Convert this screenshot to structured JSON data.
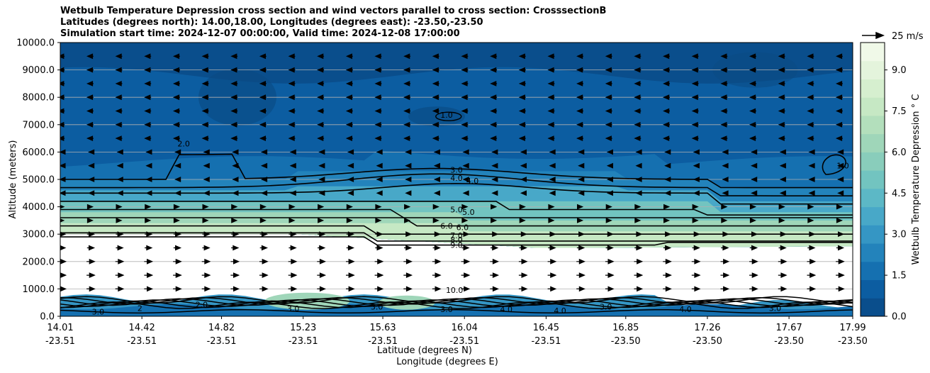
{
  "chart_data": {
    "type": "heatmap",
    "title_lines": [
      "Wetbulb Temperature Depression cross section and wind vectors parallel to cross section: CrosssectionB",
      "Latitudes (degrees north): 14.00,18.00, Longitudes (degrees east): -23.50,-23.50",
      "Simulation start time: 2024-12-07 00:00:00, Valid time: 2024-12-08 17:00:00"
    ],
    "ylabel": "Altitude (meters)",
    "xlabel_lines": [
      "Latitude (degrees N)",
      "Longitude (degrees E)"
    ],
    "ylim": [
      0,
      10000
    ],
    "y_ticks": [
      "0.0",
      "1000.0",
      "2000.0",
      "3000.0",
      "4000.0",
      "5000.0",
      "6000.0",
      "7000.0",
      "8000.0",
      "9000.0",
      "10000.0"
    ],
    "x_ticks": [
      {
        "lat": "14.01",
        "lon": "-23.51"
      },
      {
        "lat": "14.42",
        "lon": "-23.51"
      },
      {
        "lat": "14.82",
        "lon": "-23.51"
      },
      {
        "lat": "15.23",
        "lon": "-23.51"
      },
      {
        "lat": "15.63",
        "lon": "-23.51"
      },
      {
        "lat": "16.04",
        "lon": "-23.51"
      },
      {
        "lat": "16.45",
        "lon": "-23.51"
      },
      {
        "lat": "16.85",
        "lon": "-23.50"
      },
      {
        "lat": "17.26",
        "lon": "-23.50"
      },
      {
        "lat": "17.67",
        "lon": "-23.50"
      },
      {
        "lat": "17.99",
        "lon": "-23.50"
      }
    ],
    "x_tick_positions": [
      14.01,
      14.42,
      14.82,
      15.23,
      15.63,
      16.04,
      16.45,
      16.85,
      17.26,
      17.67,
      17.99
    ],
    "xlim": [
      14.01,
      17.99
    ],
    "colorbar": {
      "label": "Wetbulb Temperature Depression ° C",
      "range": [
        0,
        10
      ],
      "ticks": [
        "0.0",
        "1.5",
        "3.0",
        "4.5",
        "6.0",
        "7.5",
        "9.0"
      ],
      "tick_values": [
        0,
        1.5,
        3,
        4.5,
        6,
        7.5,
        9
      ],
      "colors": [
        "#0a4e8c",
        "#0c5da1",
        "#1570b0",
        "#2383bb",
        "#3596c4",
        "#48a8c8",
        "#5cb8c6",
        "#72c4c0",
        "#89cdbb",
        "#9fd6b9",
        "#b3dfbc",
        "#c6e8c4",
        "#d6efcf",
        "#e4f4dc",
        "#f0f9e8"
      ]
    },
    "quiver_key": {
      "label": "25 m/s",
      "value": 25
    },
    "contour_labels": [
      {
        "text": "1.0",
        "lat": 15.95,
        "alt": 7250
      },
      {
        "text": "2.0",
        "lat": 14.63,
        "alt": 6200
      },
      {
        "text": "1.0",
        "lat": 17.94,
        "alt": 5400
      },
      {
        "text": "3.0",
        "lat": 16.0,
        "alt": 5250
      },
      {
        "text": "4.0",
        "lat": 16.0,
        "alt": 4950
      },
      {
        "text": "4.0",
        "lat": 16.08,
        "alt": 4850
      },
      {
        "text": "5.0",
        "lat": 16.0,
        "alt": 3800
      },
      {
        "text": "5.0",
        "lat": 16.06,
        "alt": 3700
      },
      {
        "text": "6.0",
        "lat": 15.95,
        "alt": 3200
      },
      {
        "text": "6.0",
        "lat": 16.03,
        "alt": 3150
      },
      {
        "text": "7.0",
        "lat": 16.0,
        "alt": 2850
      },
      {
        "text": "8.0",
        "lat": 16.0,
        "alt": 2700
      },
      {
        "text": "9.0",
        "lat": 16.0,
        "alt": 2500
      },
      {
        "text": "10.0",
        "lat": 15.99,
        "alt": 850
      },
      {
        "text": "3.0",
        "lat": 14.2,
        "alt": 70
      },
      {
        "text": "2",
        "lat": 14.41,
        "alt": 200
      },
      {
        "text": "2.0",
        "lat": 14.72,
        "alt": 320
      },
      {
        "text": "3.0",
        "lat": 15.18,
        "alt": 180
      },
      {
        "text": "3.0",
        "lat": 15.6,
        "alt": 250
      },
      {
        "text": "3.0",
        "lat": 15.95,
        "alt": 150
      },
      {
        "text": "4.0",
        "lat": 16.25,
        "alt": 150
      },
      {
        "text": "4.0",
        "lat": 16.52,
        "alt": 100
      },
      {
        "text": "3.0",
        "lat": 16.75,
        "alt": 250
      },
      {
        "text": "4.0",
        "lat": 17.15,
        "alt": 150
      },
      {
        "text": "3.0",
        "lat": 17.6,
        "alt": 200
      }
    ]
  }
}
